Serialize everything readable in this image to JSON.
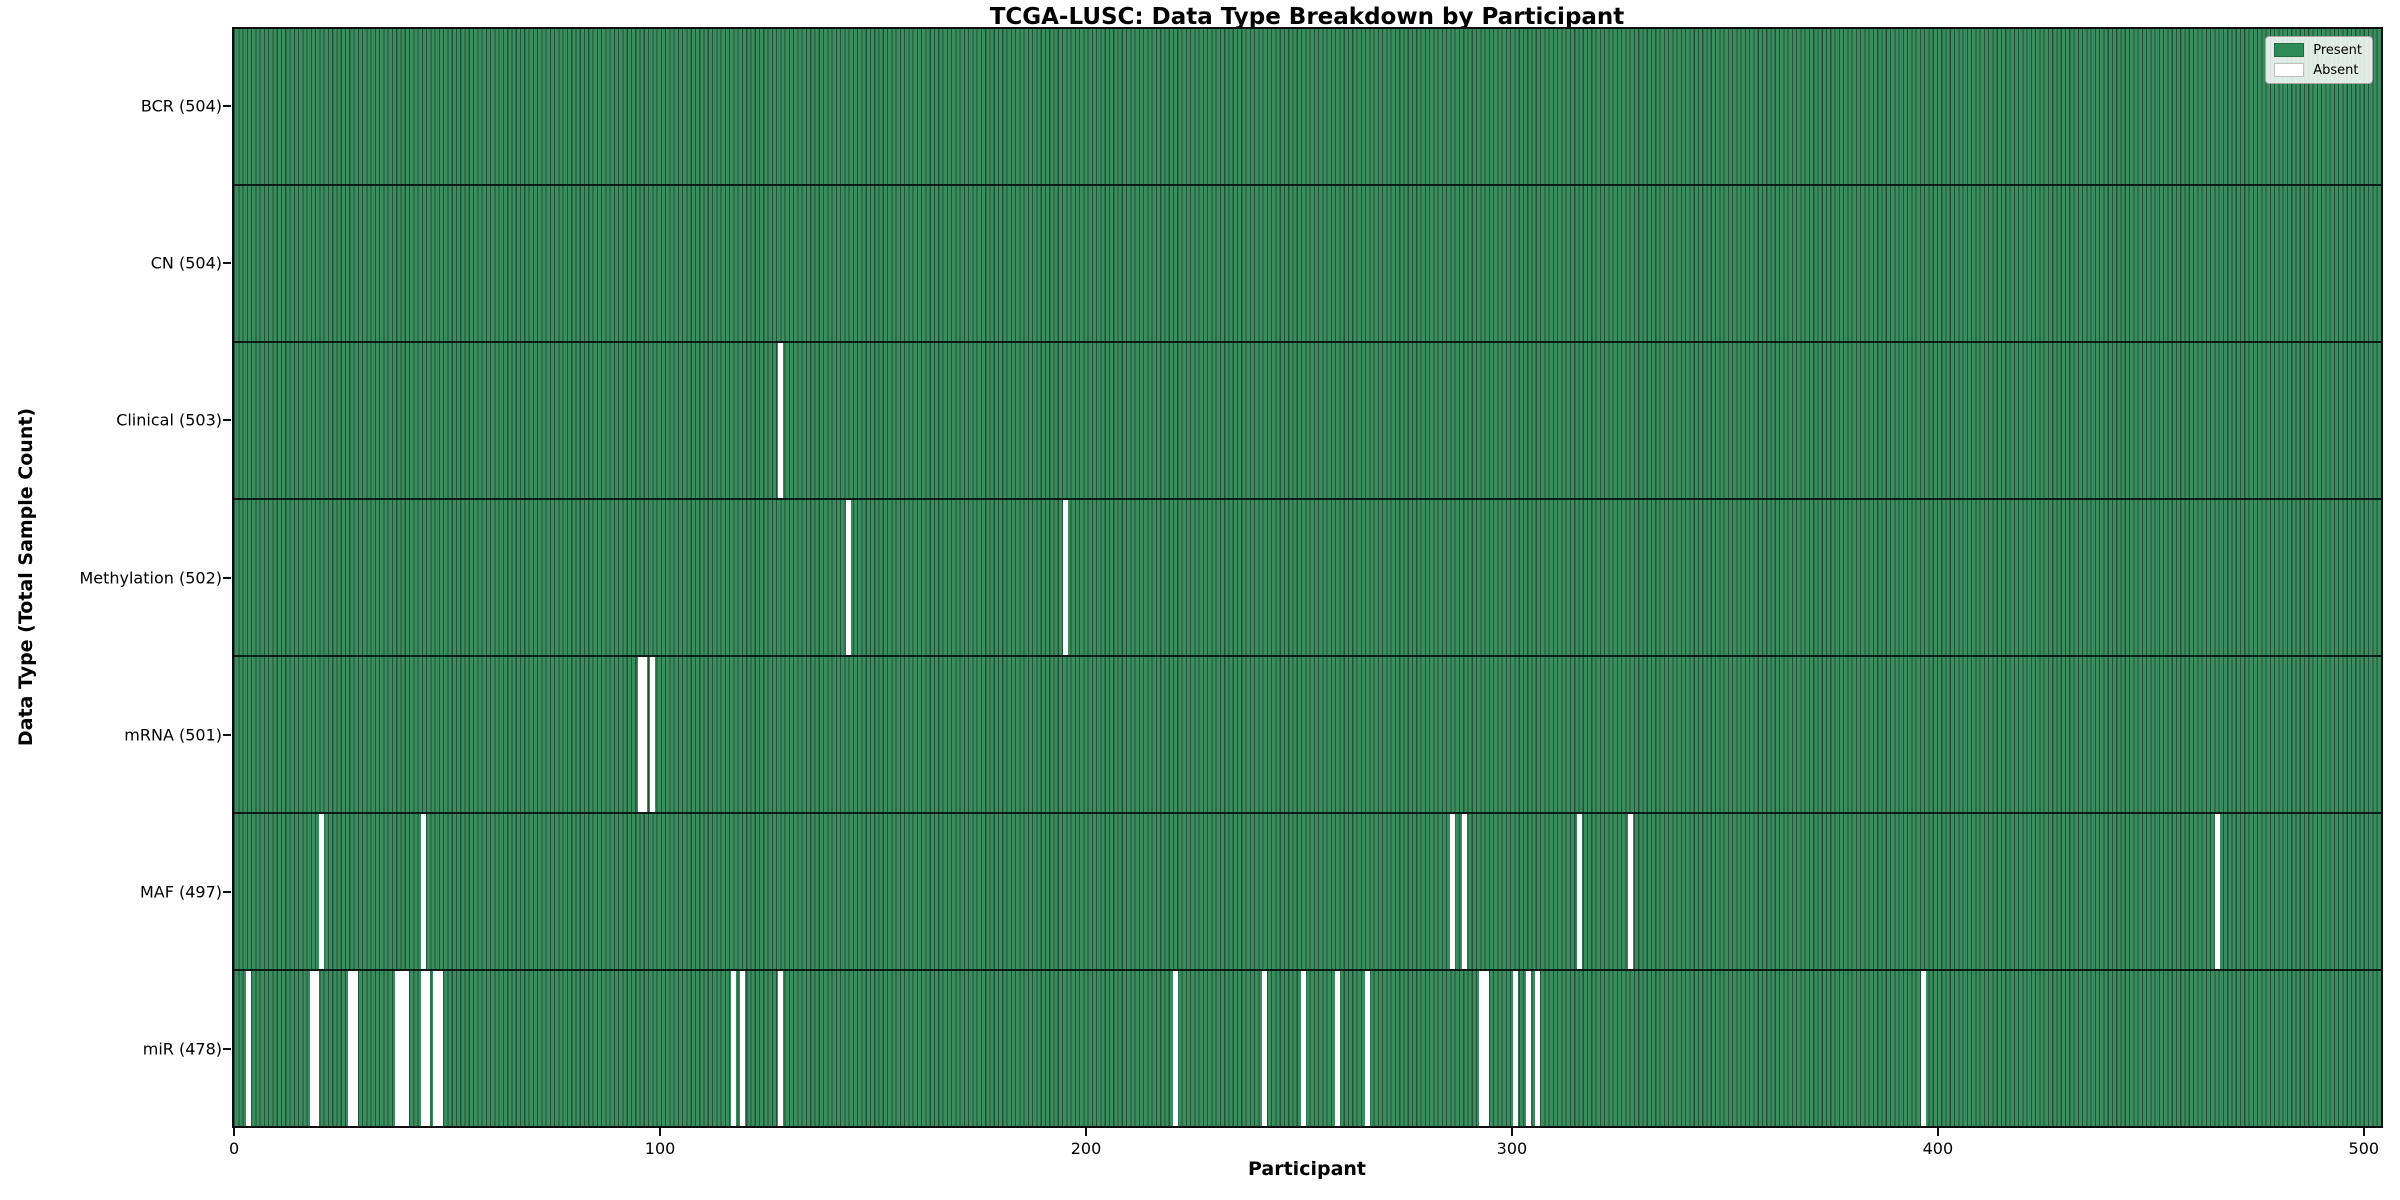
{
  "chart_data": {
    "type": "heatmap",
    "title": "TCGA-LUSC: Data Type Breakdown by Participant",
    "xlabel": "Participant",
    "ylabel": "Data Type (Total Sample Count)",
    "x_ticks": [
      0,
      100,
      200,
      300,
      400,
      500
    ],
    "x_range": [
      0,
      504
    ],
    "n_participants": 504,
    "grid": false,
    "value_encoding": {
      "present": 1,
      "absent": 0
    },
    "colors": {
      "present": "#2e8b57",
      "absent": "#ffffff",
      "bar_edge": "rgba(0,0,0,0.42)"
    },
    "legend": {
      "position": "upper right",
      "labels": [
        "Present",
        "Absent"
      ],
      "colors": [
        "#2e8b57",
        "#ffffff"
      ]
    },
    "rows": [
      {
        "name": "BCR",
        "label": "BCR (504)",
        "count": 504,
        "absent_participants": []
      },
      {
        "name": "CN",
        "label": "CN (504)",
        "count": 504,
        "absent_participants": []
      },
      {
        "name": "Clinical",
        "label": "Clinical (503)",
        "count": 503,
        "absent_participants": [
          128
        ]
      },
      {
        "name": "Methylation",
        "label": "Methylation (502)",
        "count": 502,
        "absent_participants": [
          144,
          195
        ]
      },
      {
        "name": "mRNA",
        "label": "mRNA (501)",
        "count": 501,
        "absent_participants": [
          95,
          96,
          98
        ]
      },
      {
        "name": "MAF",
        "label": "MAF (497)",
        "count": 497,
        "absent_participants": [
          20,
          44,
          286,
          289,
          316,
          328,
          466
        ]
      },
      {
        "name": "miR",
        "label": "miR (478)",
        "count": 478,
        "absent_participants": [
          3,
          18,
          19,
          27,
          28,
          38,
          39,
          40,
          44,
          45,
          47,
          48,
          117,
          119,
          128,
          221,
          242,
          251,
          259,
          266,
          293,
          294,
          301,
          304,
          306,
          397
        ]
      }
    ]
  }
}
